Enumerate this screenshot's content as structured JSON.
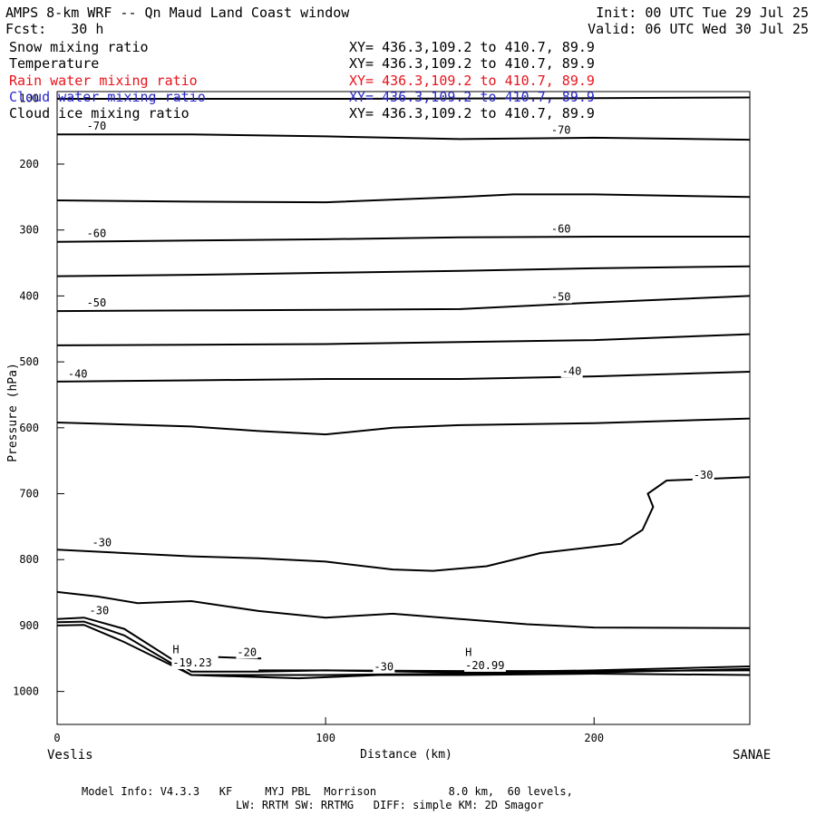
{
  "header": {
    "title_left": "AMPS 8-km WRF -- Qn Maud Land Coast window",
    "title_right": "Init: 00 UTC Tue 29 Jul 25",
    "fcst_left": "Fcst:   30 h",
    "valid_right": "Valid: 06 UTC Wed 30 Jul 25"
  },
  "legend": [
    {
      "name": "Snow mixing ratio",
      "xy": "XY= 436.3,109.2 to 410.7, 89.9",
      "color": "#000000"
    },
    {
      "name": "Temperature",
      "xy": "XY= 436.3,109.2 to 410.7, 89.9",
      "color": "#000000"
    },
    {
      "name": "Rain water mixing ratio",
      "xy": "XY= 436.3,109.2 to 410.7, 89.9",
      "color": "#e8141c"
    },
    {
      "name": "Cloud water mixing ratio",
      "xy": "XY= 436.3,109.2 to 410.7, 89.9",
      "color": "#2828c8"
    },
    {
      "name": "Cloud ice mixing ratio",
      "xy": "XY= 436.3,109.2 to 410.7, 89.9",
      "color": "#000000"
    }
  ],
  "footer": {
    "left_end": "Veslis",
    "right_end": "SANAE",
    "model_line1": "Model Info: V4.3.3   KF     MYJ PBL  Morrison           8.0 km,  60 levels,",
    "model_line2": "LW: RRTM SW: RRTMG   DIFF: simple KM: 2D Smagor"
  },
  "chart_data": {
    "type": "line",
    "xlabel": "Distance (km)",
    "ylabel": "Pressure (hPa)",
    "xlim": [
      0,
      258
    ],
    "ylim": [
      1050,
      90
    ],
    "xticks": [
      0,
      100,
      200
    ],
    "yticks": [
      100,
      200,
      300,
      400,
      500,
      600,
      700,
      800,
      900,
      1000
    ],
    "series": [
      {
        "values": [
          [
            0,
            101
          ],
          [
            100,
            101
          ],
          [
            200,
            100
          ],
          [
            258,
            99
          ]
        ]
      },
      {
        "values": [
          [
            0,
            155
          ],
          [
            50,
            155
          ],
          [
            100,
            158
          ],
          [
            150,
            162
          ],
          [
            200,
            160
          ],
          [
            258,
            163
          ]
        ]
      },
      {
        "values": [
          [
            0,
            255
          ],
          [
            50,
            257
          ],
          [
            100,
            258
          ],
          [
            150,
            250
          ],
          [
            170,
            246
          ],
          [
            200,
            246
          ],
          [
            258,
            250
          ]
        ]
      },
      {
        "values": [
          [
            0,
            318
          ],
          [
            50,
            316
          ],
          [
            100,
            314
          ],
          [
            150,
            311
          ],
          [
            200,
            310
          ],
          [
            258,
            310
          ]
        ]
      },
      {
        "values": [
          [
            0,
            370
          ],
          [
            50,
            368
          ],
          [
            100,
            365
          ],
          [
            150,
            362
          ],
          [
            200,
            358
          ],
          [
            258,
            355
          ]
        ]
      },
      {
        "values": [
          [
            0,
            423
          ],
          [
            50,
            422
          ],
          [
            100,
            421
          ],
          [
            150,
            420
          ],
          [
            200,
            410
          ],
          [
            258,
            400
          ]
        ]
      },
      {
        "values": [
          [
            0,
            475
          ],
          [
            50,
            474
          ],
          [
            100,
            473
          ],
          [
            150,
            470
          ],
          [
            200,
            467
          ],
          [
            258,
            458
          ]
        ]
      },
      {
        "values": [
          [
            0,
            530
          ],
          [
            50,
            528
          ],
          [
            100,
            526
          ],
          [
            150,
            526
          ],
          [
            200,
            522
          ],
          [
            258,
            515
          ]
        ]
      },
      {
        "values": [
          [
            0,
            592
          ],
          [
            50,
            598
          ],
          [
            75,
            605
          ],
          [
            100,
            610
          ],
          [
            125,
            600
          ],
          [
            150,
            596
          ],
          [
            200,
            593
          ],
          [
            258,
            586
          ]
        ]
      },
      {
        "values": [
          [
            0,
            785
          ],
          [
            25,
            790
          ],
          [
            50,
            795
          ],
          [
            75,
            798
          ],
          [
            100,
            803
          ],
          [
            125,
            815
          ],
          [
            140,
            817
          ],
          [
            160,
            810
          ],
          [
            180,
            790
          ],
          [
            210,
            776
          ],
          [
            218,
            755
          ],
          [
            222,
            720
          ],
          [
            220,
            700
          ],
          [
            227,
            680
          ],
          [
            258,
            675
          ]
        ]
      },
      {
        "values": [
          [
            0,
            849
          ],
          [
            15,
            856
          ],
          [
            30,
            866
          ],
          [
            50,
            863
          ],
          [
            75,
            878
          ],
          [
            100,
            888
          ],
          [
            125,
            882
          ],
          [
            150,
            890
          ],
          [
            175,
            898
          ],
          [
            200,
            903
          ],
          [
            258,
            904
          ]
        ]
      },
      {
        "values": [
          [
            0,
            890
          ],
          [
            10,
            888
          ],
          [
            25,
            905
          ],
          [
            50,
            970
          ],
          [
            75,
            970
          ],
          [
            100,
            968
          ],
          [
            150,
            971
          ],
          [
            200,
            968
          ],
          [
            258,
            962
          ]
        ]
      },
      {
        "values": [
          [
            0,
            895
          ],
          [
            10,
            894
          ],
          [
            25,
            915
          ],
          [
            50,
            975
          ],
          [
            75,
            975
          ],
          [
            100,
            975
          ],
          [
            150,
            973
          ],
          [
            200,
            971
          ],
          [
            258,
            966
          ]
        ]
      },
      {
        "values": [
          [
            0,
            900
          ],
          [
            10,
            899
          ],
          [
            25,
            925
          ],
          [
            50,
            975
          ],
          [
            90,
            980
          ],
          [
            120,
            975
          ],
          [
            150,
            975
          ],
          [
            200,
            973
          ],
          [
            258,
            975
          ]
        ]
      },
      {
        "values": [
          [
            60,
            948
          ],
          [
            76,
            950
          ]
        ]
      },
      {
        "values": [
          [
            75,
            968
          ],
          [
            100,
            968
          ],
          [
            150,
            969
          ],
          [
            200,
            969
          ],
          [
            258,
            968
          ]
        ]
      }
    ],
    "contour_labels": [
      {
        "x": 11,
        "p": 148,
        "text": "-70"
      },
      {
        "x": 184,
        "p": 154,
        "text": "-70"
      },
      {
        "x": 11,
        "p": 311,
        "text": "-60"
      },
      {
        "x": 184,
        "p": 304,
        "text": "-60"
      },
      {
        "x": 11,
        "p": 416,
        "text": "-50"
      },
      {
        "x": 184,
        "p": 407,
        "text": "-50"
      },
      {
        "x": 4,
        "p": 524,
        "text": "-40"
      },
      {
        "x": 188,
        "p": 520,
        "text": "-40"
      },
      {
        "x": 237,
        "p": 677,
        "text": "-30"
      },
      {
        "x": 13,
        "p": 780,
        "text": "-30"
      },
      {
        "x": 12,
        "p": 883,
        "text": "-30"
      },
      {
        "x": 118,
        "p": 968,
        "text": "-30"
      },
      {
        "x": 67,
        "p": 946,
        "text": "-20"
      },
      {
        "x": 43,
        "p": 942,
        "text": "H"
      },
      {
        "x": 43,
        "p": 962,
        "text": "-19.23"
      },
      {
        "x": 152,
        "p": 946,
        "text": "H"
      },
      {
        "x": 152,
        "p": 966,
        "text": "-20.99"
      }
    ]
  }
}
